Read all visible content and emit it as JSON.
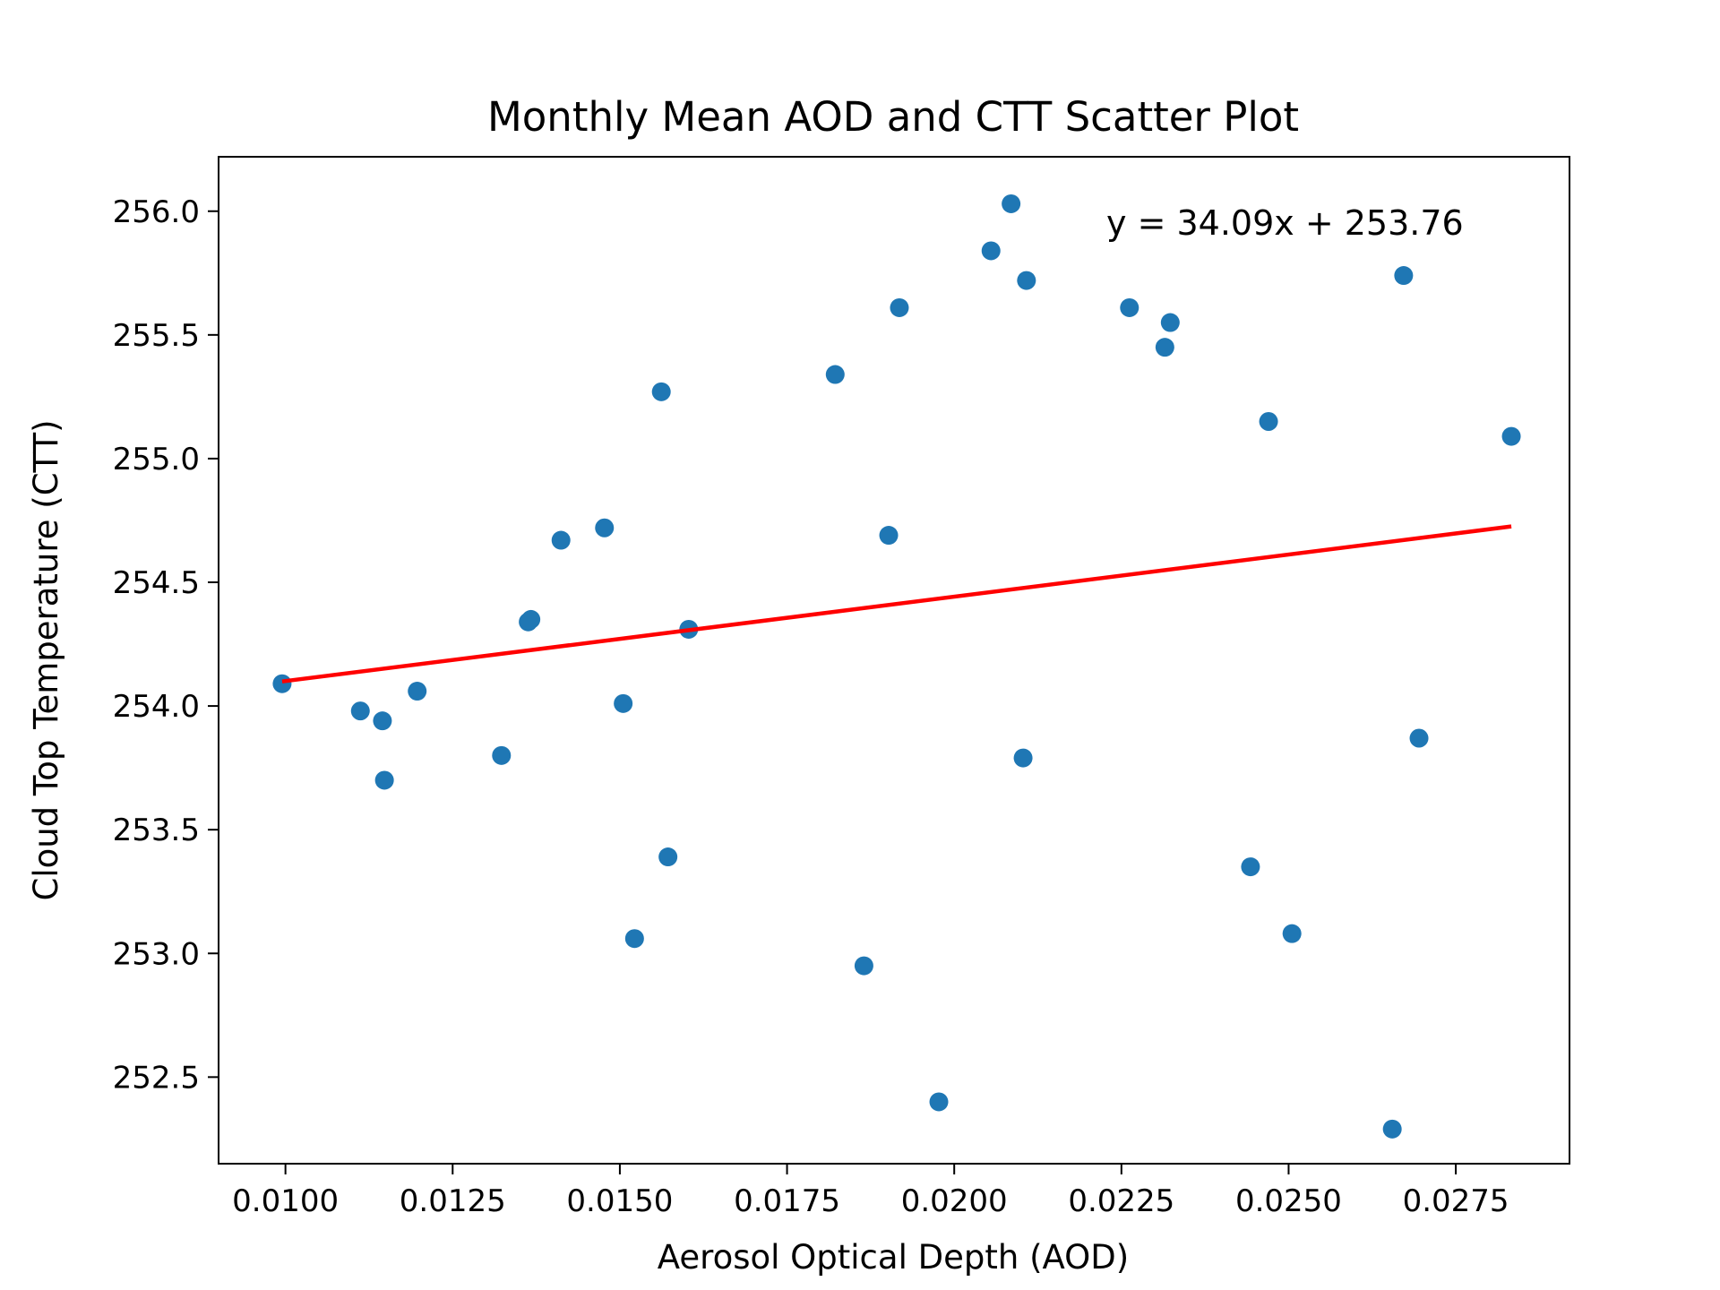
{
  "chart_data": {
    "type": "scatter",
    "title": "Monthly Mean AOD and CTT Scatter Plot",
    "xlabel": "Aerosol Optical Depth (AOD)",
    "ylabel": "Cloud Top Temperature (CTT)",
    "xlim": [
      0.009,
      0.0292
    ],
    "ylim": [
      252.15,
      256.22
    ],
    "x_ticks": [
      0.01,
      0.0125,
      0.015,
      0.0175,
      0.02,
      0.0225,
      0.025,
      0.0275
    ],
    "x_tick_labels": [
      "0.0100",
      "0.0125",
      "0.0150",
      "0.0175",
      "0.0200",
      "0.0225",
      "0.0250",
      "0.0275"
    ],
    "y_ticks": [
      252.5,
      253.0,
      253.5,
      254.0,
      254.5,
      255.0,
      255.5,
      256.0
    ],
    "y_tick_labels": [
      "252.5",
      "253.0",
      "253.5",
      "254.0",
      "254.5",
      "255.0",
      "255.5",
      "256.0"
    ],
    "grid": false,
    "point_color": "#1f77b4",
    "line_color": "#ff0000",
    "points": [
      {
        "x": 0.00995,
        "y": 254.09
      },
      {
        "x": 0.01112,
        "y": 253.98
      },
      {
        "x": 0.01145,
        "y": 253.94
      },
      {
        "x": 0.01148,
        "y": 253.7
      },
      {
        "x": 0.01197,
        "y": 254.06
      },
      {
        "x": 0.01323,
        "y": 253.8
      },
      {
        "x": 0.01363,
        "y": 254.34
      },
      {
        "x": 0.01367,
        "y": 254.35
      },
      {
        "x": 0.01412,
        "y": 254.67
      },
      {
        "x": 0.01477,
        "y": 254.72
      },
      {
        "x": 0.01505,
        "y": 254.01
      },
      {
        "x": 0.01522,
        "y": 253.06
      },
      {
        "x": 0.01562,
        "y": 255.27
      },
      {
        "x": 0.01572,
        "y": 253.39
      },
      {
        "x": 0.01603,
        "y": 254.31
      },
      {
        "x": 0.01822,
        "y": 255.34
      },
      {
        "x": 0.01865,
        "y": 252.95
      },
      {
        "x": 0.01902,
        "y": 254.69
      },
      {
        "x": 0.01918,
        "y": 255.61
      },
      {
        "x": 0.01977,
        "y": 252.4
      },
      {
        "x": 0.02055,
        "y": 255.84
      },
      {
        "x": 0.02085,
        "y": 256.03
      },
      {
        "x": 0.02103,
        "y": 253.79
      },
      {
        "x": 0.02108,
        "y": 255.72
      },
      {
        "x": 0.02262,
        "y": 255.61
      },
      {
        "x": 0.02315,
        "y": 255.45
      },
      {
        "x": 0.02323,
        "y": 255.55
      },
      {
        "x": 0.02443,
        "y": 253.35
      },
      {
        "x": 0.0247,
        "y": 255.15
      },
      {
        "x": 0.02505,
        "y": 253.08
      },
      {
        "x": 0.02655,
        "y": 252.29
      },
      {
        "x": 0.02672,
        "y": 255.74
      },
      {
        "x": 0.02695,
        "y": 253.87
      },
      {
        "x": 0.02833,
        "y": 255.09
      }
    ],
    "regression": {
      "slope": 34.09,
      "intercept": 253.76,
      "x_range": [
        0.00995,
        0.02833
      ],
      "label": "y = 34.09x + 253.76"
    }
  }
}
